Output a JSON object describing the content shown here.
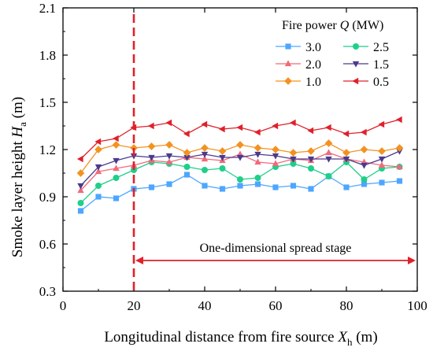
{
  "chart_data": {
    "type": "scatter",
    "xlabel_main": "Longitudinal distance from fire source ",
    "xlabel_var": "X",
    "xlabel_sub": "h",
    "xlabel_unit": " (m)",
    "ylabel_main": "Smoke layer height ",
    "ylabel_var": "H",
    "ylabel_sub": "a",
    "ylabel_unit": " (m)",
    "xlim": [
      0,
      100
    ],
    "ylim": [
      0.3,
      2.1
    ],
    "xticks": [
      0,
      20,
      40,
      60,
      80,
      100
    ],
    "yticks": [
      0.3,
      0.6,
      0.9,
      1.2,
      1.5,
      1.8,
      2.1
    ],
    "yticks_labels": [
      "0.3",
      "0.6",
      "0.9",
      "1.2",
      "1.5",
      "1.8",
      "2.1"
    ],
    "legend_title_main": "Fire power ",
    "legend_title_var": "Q",
    "legend_title_unit": " (MW)",
    "legend_position": "top-right",
    "annotation": "One-dimensional spread stage",
    "stage_start_x": 20,
    "x": [
      5,
      10,
      15,
      20,
      25,
      30,
      35,
      40,
      45,
      50,
      55,
      60,
      65,
      70,
      75,
      80,
      85,
      90,
      95
    ],
    "series": [
      {
        "name": "3.0",
        "color": "#4da6ff",
        "marker": "square",
        "values": [
          0.81,
          0.9,
          0.89,
          0.95,
          0.96,
          0.98,
          1.04,
          0.97,
          0.95,
          0.97,
          0.98,
          0.96,
          0.97,
          0.95,
          1.03,
          0.96,
          0.98,
          0.99,
          1.0
        ]
      },
      {
        "name": "2.5",
        "color": "#1fcf8a",
        "marker": "circle",
        "values": [
          0.86,
          0.97,
          1.02,
          1.07,
          1.12,
          1.11,
          1.09,
          1.07,
          1.08,
          1.01,
          1.02,
          1.09,
          1.11,
          1.08,
          1.03,
          1.12,
          1.01,
          1.08,
          1.09
        ]
      },
      {
        "name": "2.0",
        "color": "#f06a7a",
        "marker": "triangle-up",
        "values": [
          0.94,
          1.06,
          1.08,
          1.1,
          1.13,
          1.12,
          1.15,
          1.14,
          1.13,
          1.17,
          1.12,
          1.11,
          1.14,
          1.13,
          1.18,
          1.14,
          1.12,
          1.1,
          1.09
        ]
      },
      {
        "name": "1.5",
        "color": "#4b3a8c",
        "marker": "triangle-down",
        "values": [
          0.97,
          1.09,
          1.13,
          1.16,
          1.15,
          1.16,
          1.15,
          1.17,
          1.15,
          1.15,
          1.17,
          1.16,
          1.14,
          1.14,
          1.14,
          1.14,
          1.1,
          1.14,
          1.19
        ]
      },
      {
        "name": "1.0",
        "color": "#f39220",
        "marker": "diamond",
        "values": [
          1.05,
          1.2,
          1.23,
          1.21,
          1.22,
          1.23,
          1.18,
          1.21,
          1.19,
          1.23,
          1.21,
          1.2,
          1.18,
          1.19,
          1.24,
          1.18,
          1.2,
          1.19,
          1.21
        ]
      },
      {
        "name": "0.5",
        "color": "#e0202a",
        "marker": "triangle-left",
        "values": [
          1.14,
          1.25,
          1.27,
          1.34,
          1.35,
          1.37,
          1.3,
          1.36,
          1.33,
          1.34,
          1.31,
          1.35,
          1.37,
          1.32,
          1.34,
          1.3,
          1.31,
          1.36,
          1.39
        ]
      }
    ]
  }
}
